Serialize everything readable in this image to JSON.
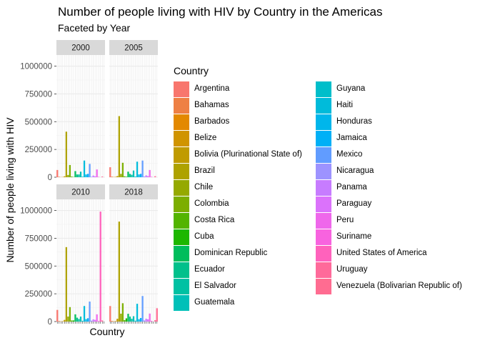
{
  "chart_data": {
    "type": "bar",
    "title": "Number of people living with HIV by Country in the Americas",
    "subtitle": "Faceted by Year",
    "xlabel": "Country",
    "ylabel": "Number of people living with HIV",
    "ylim": [
      0,
      1100000
    ],
    "yticks": [
      0,
      250000,
      500000,
      750000,
      1000000
    ],
    "ytick_labels": [
      "0",
      "250000",
      "500000",
      "750000",
      "1000000"
    ],
    "legend": {
      "title": "Country",
      "position": "right"
    },
    "categories": [
      "Argentina",
      "Bahamas",
      "Barbados",
      "Belize",
      "Bolivia (Plurinational State of)",
      "Brazil",
      "Chile",
      "Colombia",
      "Costa Rica",
      "Cuba",
      "Dominican Republic",
      "Ecuador",
      "El Salvador",
      "Guatemala",
      "Guyana",
      "Haiti",
      "Honduras",
      "Jamaica",
      "Mexico",
      "Nicaragua",
      "Panama",
      "Paraguay",
      "Peru",
      "Suriname",
      "United States of America",
      "Uruguay",
      "Venezuela (Bolivarian Republic of)"
    ],
    "colors": [
      "#F8766D",
      "#EE8044",
      "#E38900",
      "#D09400",
      "#C09B00",
      "#AEA200",
      "#95A900",
      "#7CAE00",
      "#53B400",
      "#1DB700",
      "#00BD5C",
      "#00C08B",
      "#00C1A3",
      "#00C0B8",
      "#00BECA",
      "#00BBDA",
      "#00B6EB",
      "#00B0F6",
      "#619CFF",
      "#9D93FF",
      "#C77CFF",
      "#DB72FB",
      "#EF67EB",
      "#F863DF",
      "#FF62BC",
      "#FF6A9A",
      "#FF6C91"
    ],
    "facets": [
      {
        "year": "2000",
        "values": [
          65000,
          4000,
          1500,
          2000,
          8000,
          410000,
          20000,
          110000,
          6000,
          2000,
          55000,
          25000,
          25000,
          50000,
          5000,
          150000,
          25000,
          30000,
          120000,
          4000,
          15000,
          8000,
          70000,
          3000,
          0,
          6000,
          0
        ]
      },
      {
        "year": "2005",
        "values": [
          90000,
          5000,
          2000,
          3000,
          10000,
          550000,
          30000,
          130000,
          8000,
          4000,
          50000,
          30000,
          22000,
          60000,
          6000,
          140000,
          25000,
          30000,
          150000,
          6000,
          17000,
          10000,
          65000,
          4000,
          0,
          9000,
          0
        ]
      },
      {
        "year": "2010",
        "values": [
          105000,
          5000,
          2000,
          3000,
          15000,
          670000,
          45000,
          130000,
          10000,
          10000,
          65000,
          35000,
          23000,
          45000,
          7000,
          140000,
          22000,
          30000,
          180000,
          8000,
          20000,
          15000,
          65000,
          5000,
          990000,
          10000,
          0
        ]
      },
      {
        "year": "2018",
        "values": [
          140000,
          6000,
          2500,
          4000,
          25000,
          900000,
          71000,
          165000,
          13000,
          29000,
          70000,
          45000,
          25000,
          48000,
          8000,
          160000,
          21000,
          32000,
          230000,
          10000,
          26000,
          20000,
          72000,
          6000,
          0,
          13000,
          120000
        ]
      }
    ]
  }
}
